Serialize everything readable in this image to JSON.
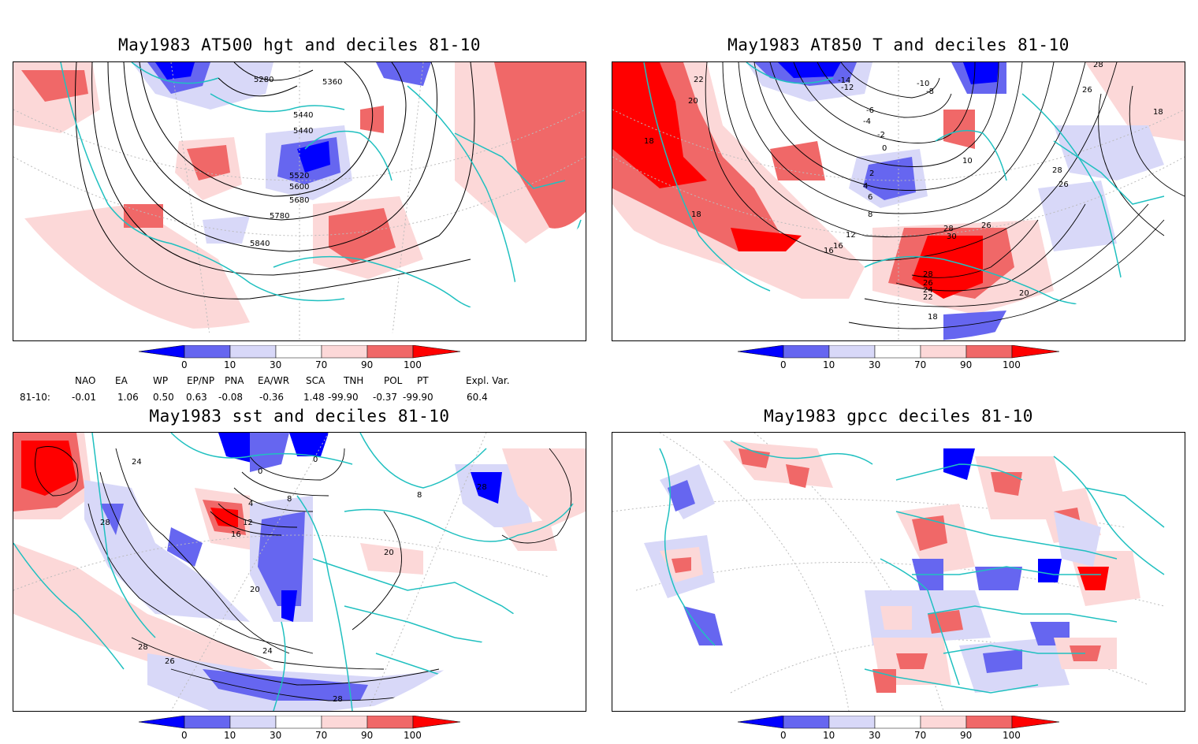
{
  "colors": {
    "dark_blue": "#0000ff",
    "mid_blue": "#6666f0",
    "light_blue": "#d8d8f8",
    "white": "#ffffff",
    "light_red": "#fcd8d8",
    "mid_red": "#f06868",
    "dark_red": "#ff0000",
    "coast": "#20c0c0",
    "contour": "#000000",
    "grid": "#bbbbbb"
  },
  "colorbar": {
    "ticks": [
      "0",
      "10",
      "30",
      "70",
      "90",
      "100"
    ]
  },
  "panels": [
    {
      "title": "May1983 AT500 hgt and deciles 81-10",
      "contour_labels": [
        "5280",
        "5360",
        "5440",
        "5440",
        "5520",
        "5600",
        "5680",
        "5780",
        "5840"
      ]
    },
    {
      "title": "May1983 AT850 T and deciles 81-10",
      "contour_labels": [
        "22",
        "20",
        "18",
        "18",
        "16",
        "12",
        "8",
        "6",
        "4",
        "2",
        "0",
        "-2",
        "-4",
        "-6",
        "-8",
        "-10",
        "-12",
        "-14",
        "10",
        "26",
        "28",
        "26",
        "28",
        "30",
        "28",
        "26",
        "24",
        "22",
        "20",
        "18",
        "18",
        "16",
        "28",
        "26"
      ]
    },
    {
      "title": "May1983 sst and deciles 81-10",
      "contour_labels": [
        "24",
        "28",
        "0",
        "0",
        "4",
        "8",
        "12",
        "16",
        "20",
        "24",
        "26",
        "28",
        "28",
        "20",
        "28",
        "8"
      ]
    },
    {
      "title": "May1983 gpcc deciles 81-10",
      "contour_labels": []
    }
  ],
  "indices": {
    "headers": [
      "NAO",
      "EA",
      "WP",
      "EP/NP",
      "PNA",
      "EA/WR",
      "SCA",
      "TNH",
      "POL",
      "PT",
      "Expl. Var."
    ],
    "row_label": "81-10:",
    "values": [
      "-0.01",
      "1.06",
      "0.50",
      "0.63",
      "-0.08",
      "-0.36",
      "1.48",
      "-99.90",
      "-0.37",
      "-99.90",
      "60.4"
    ]
  }
}
